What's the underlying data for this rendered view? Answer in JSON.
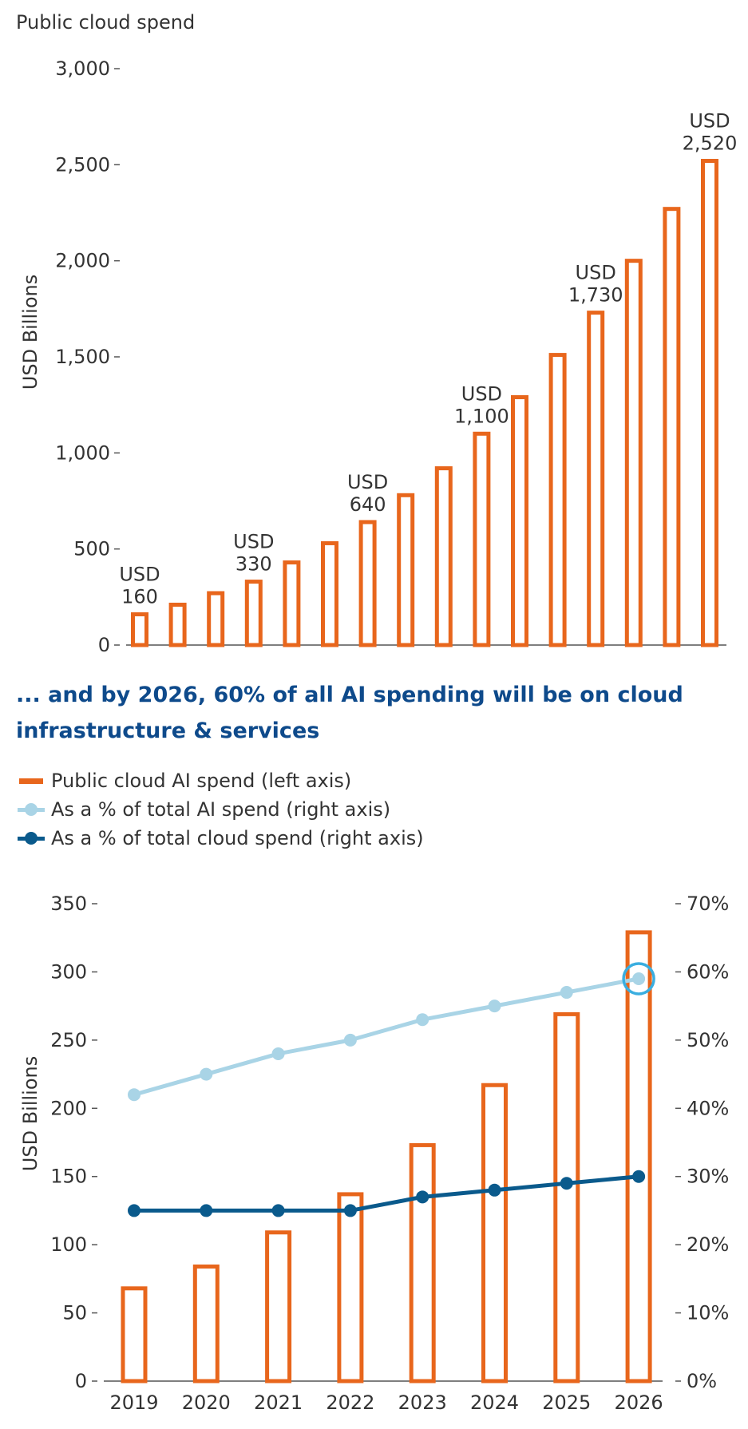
{
  "colors": {
    "orange": "#e8661c",
    "light_blue": "#a9d4e6",
    "dark_blue": "#0a5a8c",
    "highlight": "#3aaee0",
    "heading": "#0e4a8b"
  },
  "section2": {
    "heading": "... and by 2026, 60% of all AI spending will be on cloud infrastructure & services",
    "legend": [
      {
        "label": "Public cloud AI spend (left axis)",
        "style": "bar"
      },
      {
        "label": "As a % of total AI spend (right axis)",
        "style": "line-light"
      },
      {
        "label": "As a % of total cloud spend (right axis)",
        "style": "line-dark"
      }
    ]
  },
  "chart_data": [
    {
      "type": "bar",
      "title": "Public cloud spend",
      "ylabel": "USD Billions",
      "ylim": [
        0,
        3000
      ],
      "yticks": [
        0,
        500,
        1000,
        1500,
        2000,
        2500,
        3000
      ],
      "ytick_labels": [
        "0",
        "500",
        "1,000",
        "1,500",
        "2,000",
        "2,500",
        "3,000"
      ],
      "grid": false,
      "values": [
        160,
        210,
        270,
        330,
        430,
        530,
        640,
        780,
        920,
        1100,
        1290,
        1510,
        1730,
        2000,
        2270,
        2520
      ],
      "annotations": [
        {
          "index": 0,
          "line1": "USD",
          "line2": "160"
        },
        {
          "index": 3,
          "line1": "USD",
          "line2": "330"
        },
        {
          "index": 6,
          "line1": "USD",
          "line2": "640"
        },
        {
          "index": 9,
          "line1": "USD",
          "line2": "1,100"
        },
        {
          "index": 12,
          "line1": "USD",
          "line2": "1,730"
        },
        {
          "index": 15,
          "line1": "USD",
          "line2": "2,520"
        }
      ]
    },
    {
      "type": "bar",
      "categories": [
        "2019",
        "2020",
        "2021",
        "2022",
        "2023",
        "2024",
        "2025",
        "2026"
      ],
      "ylabel": "USD Billions",
      "ylim": [
        0,
        350
      ],
      "yticks": [
        0,
        50,
        100,
        150,
        200,
        250,
        300,
        350
      ],
      "y2lim": [
        0,
        70
      ],
      "y2ticks": [
        0,
        10,
        20,
        30,
        40,
        50,
        60,
        70
      ],
      "y2tick_labels": [
        "0%",
        "10%",
        "20%",
        "30%",
        "40%",
        "50%",
        "60%",
        "70%"
      ],
      "grid": false,
      "legend_position": "top-left",
      "series": [
        {
          "name": "Public cloud AI spend (left axis)",
          "type": "bar",
          "axis": "left",
          "values": [
            68,
            84,
            109,
            137,
            173,
            217,
            269,
            329
          ]
        },
        {
          "name": "As a % of total AI spend (right axis)",
          "type": "line",
          "axis": "right",
          "values": [
            42,
            45,
            48,
            50,
            53,
            55,
            57,
            59
          ]
        },
        {
          "name": "As a % of total cloud spend (right axis)",
          "type": "line",
          "axis": "right",
          "values": [
            25,
            25,
            25,
            25,
            27,
            28,
            29,
            30
          ]
        }
      ],
      "highlight": {
        "series_index": 1,
        "category_index": 7
      }
    }
  ]
}
